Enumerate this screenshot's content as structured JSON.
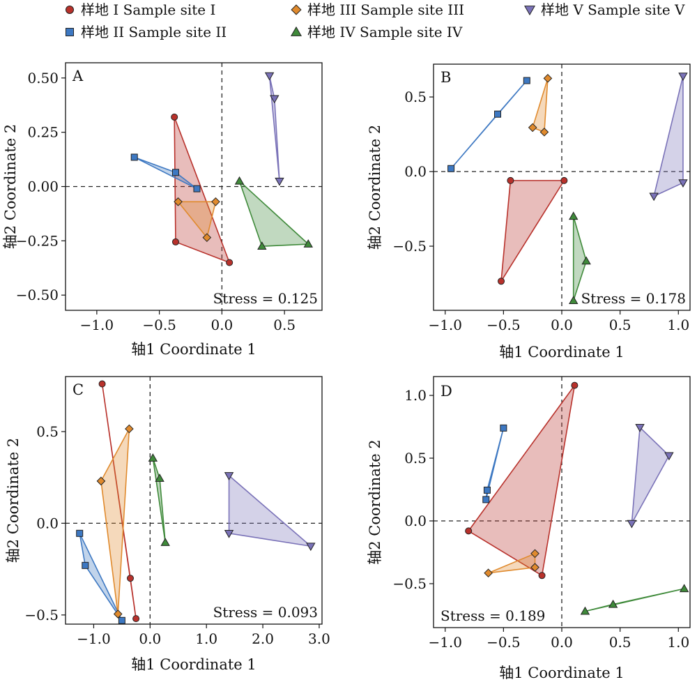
{
  "legend": [
    {
      "label": "样地 I Sample site I",
      "marker": "circle",
      "color": "#b8312b"
    },
    {
      "label": "样地 II Sample site II",
      "marker": "square",
      "color": "#3d78c2"
    },
    {
      "label": "样地 III Sample site III",
      "marker": "diamond",
      "color": "#e08a2d"
    },
    {
      "label": "样地 IV Sample site IV",
      "marker": "triangle-up",
      "color": "#3f8a3a"
    },
    {
      "label": "样地 V Sample site V",
      "marker": "triangle-down",
      "color": "#7a72b8"
    }
  ],
  "chart_data": [
    {
      "type": "scatter",
      "panel": "A",
      "xlabel": "轴1 Coordinate 1",
      "ylabel": "轴2 Coordinate 2",
      "xlim": [
        -1.25,
        0.8
      ],
      "ylim": [
        -0.57,
        0.57
      ],
      "xticks": [
        -1.0,
        -0.5,
        0.0,
        0.5
      ],
      "yticks": [
        -0.5,
        -0.25,
        0.0,
        0.25,
        0.5
      ],
      "annotation": "Stress = 0.125",
      "series": [
        {
          "points": [
            [
              -0.38,
              0.32
            ],
            [
              -0.37,
              -0.255
            ],
            [
              0.06,
              -0.35
            ]
          ]
        },
        {
          "points": [
            [
              -0.7,
              0.135
            ],
            [
              -0.37,
              0.065
            ],
            [
              -0.2,
              -0.01
            ]
          ]
        },
        {
          "points": [
            [
              -0.35,
              -0.07
            ],
            [
              -0.05,
              -0.07
            ],
            [
              -0.12,
              -0.235
            ]
          ]
        },
        {
          "points": [
            [
              0.14,
              0.025
            ],
            [
              0.32,
              -0.275
            ],
            [
              0.69,
              -0.265
            ]
          ]
        },
        {
          "points": [
            [
              0.38,
              0.51
            ],
            [
              0.42,
              0.405
            ],
            [
              0.46,
              0.025
            ]
          ]
        }
      ]
    },
    {
      "type": "scatter",
      "panel": "B",
      "xlabel": "轴1 Coordinate 1",
      "ylabel": "轴2 Coordinate 2",
      "xlim": [
        -1.1,
        1.1
      ],
      "ylim": [
        -0.93,
        0.72
      ],
      "xticks": [
        -1.0,
        -0.5,
        0.0,
        0.5,
        1.0
      ],
      "yticks": [
        -0.5,
        0.0,
        0.5
      ],
      "annotation": "Stress = 0.178",
      "series": [
        {
          "points": [
            [
              -0.44,
              -0.06
            ],
            [
              0.02,
              -0.06
            ],
            [
              -0.52,
              -0.735
            ]
          ]
        },
        {
          "points": [
            [
              -0.95,
              0.02
            ],
            [
              -0.55,
              0.385
            ],
            [
              -0.3,
              0.61
            ]
          ]
        },
        {
          "points": [
            [
              -0.12,
              0.625
            ],
            [
              -0.25,
              0.295
            ],
            [
              -0.15,
              0.265
            ]
          ]
        },
        {
          "points": [
            [
              0.1,
              -0.3
            ],
            [
              0.21,
              -0.6
            ],
            [
              0.1,
              -0.865
            ]
          ]
        },
        {
          "points": [
            [
              1.04,
              0.64
            ],
            [
              0.79,
              -0.165
            ],
            [
              1.04,
              -0.075
            ]
          ]
        }
      ]
    },
    {
      "type": "scatter",
      "panel": "C",
      "xlabel": "轴1 Coordinate 1",
      "ylabel": "轴2 Coordinate 2",
      "xlim": [
        -1.5,
        3.05
      ],
      "ylim": [
        -0.55,
        0.8
      ],
      "xticks": [
        -1.0,
        0.0,
        1.0,
        2.0,
        3.0
      ],
      "yticks": [
        -0.5,
        0.0,
        0.5
      ],
      "annotation": "Stress = 0.093",
      "series": [
        {
          "points": [
            [
              -0.85,
              0.76
            ],
            [
              -0.35,
              -0.3
            ],
            [
              -0.25,
              -0.52
            ]
          ]
        },
        {
          "points": [
            [
              -1.25,
              -0.055
            ],
            [
              -1.15,
              -0.23
            ],
            [
              -0.5,
              -0.53
            ]
          ]
        },
        {
          "points": [
            [
              -0.37,
              0.515
            ],
            [
              -0.87,
              0.23
            ],
            [
              -0.57,
              -0.495
            ]
          ]
        },
        {
          "points": [
            [
              0.05,
              0.355
            ],
            [
              0.17,
              0.245
            ],
            [
              0.27,
              -0.105
            ]
          ]
        },
        {
          "points": [
            [
              1.4,
              0.26
            ],
            [
              1.4,
              -0.055
            ],
            [
              2.85,
              -0.125
            ]
          ]
        }
      ]
    },
    {
      "type": "scatter",
      "panel": "D",
      "xlabel": "轴1 Coordinate 1",
      "ylabel": "轴2 Coordinate 2",
      "xlim": [
        -1.1,
        1.1
      ],
      "ylim": [
        -0.85,
        1.15
      ],
      "xticks": [
        -1.0,
        -0.5,
        0.0,
        0.5,
        1.0
      ],
      "yticks": [
        -0.5,
        0.0,
        0.5,
        1.0
      ],
      "annotation": "Stress = 0.189",
      "series": [
        {
          "points": [
            [
              0.11,
              1.08
            ],
            [
              -0.8,
              -0.08
            ],
            [
              -0.17,
              -0.435
            ]
          ]
        },
        {
          "points": [
            [
              -0.5,
              0.74
            ],
            [
              -0.64,
              0.245
            ],
            [
              -0.65,
              0.17
            ]
          ]
        },
        {
          "points": [
            [
              -0.63,
              -0.415
            ],
            [
              -0.23,
              -0.26
            ],
            [
              -0.23,
              -0.37
            ]
          ]
        },
        {
          "points": [
            [
              0.2,
              -0.72
            ],
            [
              0.44,
              -0.665
            ],
            [
              1.05,
              -0.54
            ]
          ]
        },
        {
          "points": [
            [
              0.67,
              0.745
            ],
            [
              0.92,
              0.52
            ],
            [
              0.6,
              -0.02
            ]
          ]
        }
      ]
    }
  ]
}
